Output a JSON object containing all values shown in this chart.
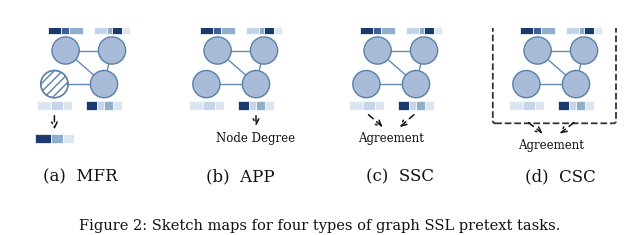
{
  "title": "Figure 2: Sketch maps for four types of graph SSL pretext tasks.",
  "title_fontsize": 10.5,
  "label_fontsize": 12,
  "panels": [
    "(a)  MFR",
    "(b)  APP",
    "(c)  SSC",
    "(d)  CSC"
  ],
  "background_color": "#ffffff",
  "node_fill_color": "#a8bcd8",
  "node_edge_color": "#5a7faa",
  "edge_color": "#6688bb",
  "arrow_color": "#111111",
  "text_color": "#111111",
  "bar_dark": "#1a3a6e",
  "bar_mid": "#3d6098",
  "bar_light": "#8faecb",
  "bar_lighter": "#c5d4e8",
  "bar_vlight": "#dce6f0"
}
